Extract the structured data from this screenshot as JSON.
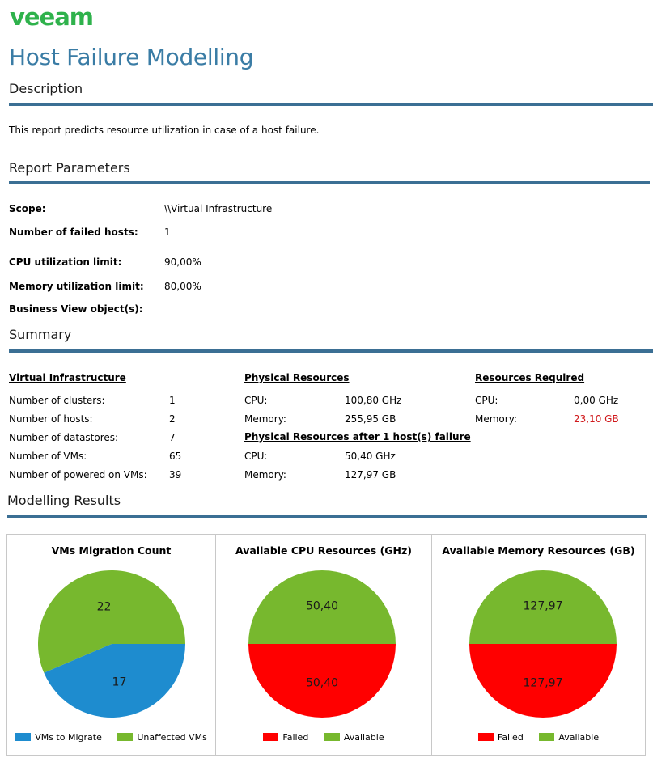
{
  "logo": {
    "text": "veeam",
    "color": "#2fb24c"
  },
  "title": "Host Failure Modelling",
  "description": {
    "heading": "Description",
    "text": "This report predicts resource utilization in case of a host failure."
  },
  "parameters": {
    "heading": "Report Parameters",
    "rows": [
      {
        "label": "Scope:",
        "value": "\\\\Virtual Infrastructure"
      },
      {
        "label": "Number of failed hosts:",
        "value": "1"
      },
      {
        "label": "CPU utilization limit:",
        "value": "90,00%"
      },
      {
        "label": "Memory utilization limit:",
        "value": "80,00%"
      },
      {
        "label": "Business View object(s):",
        "value": ""
      }
    ]
  },
  "summary": {
    "heading": "Summary",
    "virtual": {
      "heading": "Virtual Infrastructure",
      "rows": [
        {
          "label": "Number of clusters:",
          "value": "1"
        },
        {
          "label": "Number of hosts:",
          "value": "2"
        },
        {
          "label": "Number of datastores:",
          "value": "7"
        },
        {
          "label": "Number of VMs:",
          "value": "65"
        },
        {
          "label": "Number of powered on VMs:",
          "value": "39"
        }
      ]
    },
    "physical": {
      "heading": "Physical Resources",
      "rows": [
        {
          "label": "CPU:",
          "value": "100,80 GHz"
        },
        {
          "label": "Memory:",
          "value": "255,95 GB"
        }
      ]
    },
    "after_failure": {
      "heading": "Physical Resources after  1 host(s) failure",
      "rows": [
        {
          "label": "CPU:",
          "value": "50,40 GHz"
        },
        {
          "label": "Memory:",
          "value": "127,97 GB"
        }
      ]
    },
    "required": {
      "heading": "Resources Required",
      "rows": [
        {
          "label": "CPU:",
          "value": "0,00 GHz"
        },
        {
          "label": "Memory:",
          "value": "23,10 GB"
        }
      ]
    }
  },
  "modelling": {
    "heading": "Modelling Results"
  },
  "chart_data": [
    {
      "type": "pie",
      "title": "VMs Migration Count",
      "slices": [
        {
          "label": "VMs to Migrate",
          "value": 17,
          "display": "17",
          "color": "#1e8ccf"
        },
        {
          "label": "Unaffected VMs",
          "value": 22,
          "display": "22",
          "color": "#77b82e"
        }
      ],
      "legend": "bottom"
    },
    {
      "type": "pie",
      "title": "Available CPU Resources (GHz)",
      "slices": [
        {
          "label": "Failed",
          "value": 50.4,
          "display": "50,40",
          "color": "#ff0000"
        },
        {
          "label": "Available",
          "value": 50.4,
          "display": "50,40",
          "color": "#77b82e"
        }
      ],
      "legend": "bottom"
    },
    {
      "type": "pie",
      "title": "Available Memory Resources (GB)",
      "slices": [
        {
          "label": "Failed",
          "value": 127.97,
          "display": "127,97",
          "color": "#ff0000"
        },
        {
          "label": "Available",
          "value": 127.97,
          "display": "127,97",
          "color": "#77b82e"
        }
      ],
      "legend": "bottom"
    }
  ]
}
